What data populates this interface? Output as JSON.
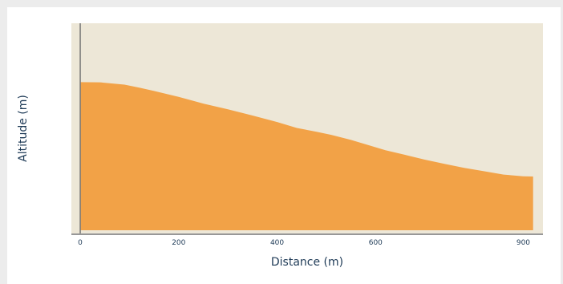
{
  "chart_data": {
    "type": "area",
    "xlabel": "Distance (m)",
    "ylabel": "Altitude (m)",
    "xlim": [
      -18,
      940
    ],
    "ylim": [
      0,
      100
    ],
    "x_ticks": [
      0,
      200,
      400,
      600,
      900
    ],
    "grid": false,
    "x": [
      0,
      40,
      90,
      120,
      150,
      200,
      250,
      300,
      350,
      400,
      440,
      480,
      510,
      550,
      580,
      620,
      660,
      700,
      740,
      780,
      820,
      860,
      900,
      920
    ],
    "y": [
      72,
      71.9,
      70.8,
      69.4,
      67.8,
      65,
      61.8,
      59.1,
      56.1,
      53,
      50.2,
      48.4,
      46.9,
      44.5,
      42.4,
      39.6,
      37.4,
      35.1,
      33.1,
      31.2,
      29.6,
      28,
      27.2,
      27.1
    ]
  },
  "colors": {
    "plot_background": "#ede7d7",
    "area_fill": "#f2a247",
    "axis_line": "#777777",
    "text": "#1f3b57"
  }
}
